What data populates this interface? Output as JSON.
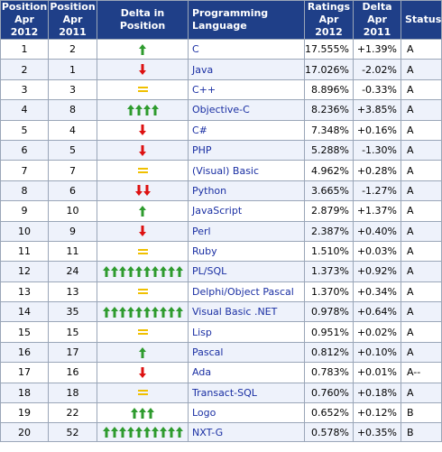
{
  "chart_data": {
    "type": "table",
    "columns": [
      "Position Apr 2012",
      "Position Apr 2011",
      "Delta in Position",
      "Programming Language",
      "Ratings Apr 2012",
      "Delta Apr 2011",
      "Status"
    ],
    "header": {
      "pos2012": [
        "Position",
        "Apr 2012"
      ],
      "pos2011": [
        "Position",
        "Apr 2011"
      ],
      "delta_pos": "Delta in Position",
      "language": "Programming Language",
      "ratings": [
        "Ratings",
        "Apr 2012"
      ],
      "delta_rating": [
        "Delta",
        "Apr 2011"
      ],
      "status": "Status"
    },
    "colors": {
      "up": "#2e9b2e",
      "down": "#dd1111",
      "same": "#f0c000",
      "header_bg": "#1f3f88",
      "link": "#1a2fa3"
    },
    "rows": [
      {
        "pos2012": "1",
        "pos2011": "2",
        "dir": "up",
        "count": 1,
        "language": "C",
        "rating": "17.555%",
        "delta": "+1.39%",
        "status": "A"
      },
      {
        "pos2012": "2",
        "pos2011": "1",
        "dir": "down",
        "count": 1,
        "language": "Java",
        "rating": "17.026%",
        "delta": "-2.02%",
        "status": "A"
      },
      {
        "pos2012": "3",
        "pos2011": "3",
        "dir": "same",
        "count": 1,
        "language": "C++",
        "rating": "8.896%",
        "delta": "-0.33%",
        "status": "A"
      },
      {
        "pos2012": "4",
        "pos2011": "8",
        "dir": "up",
        "count": 4,
        "language": "Objective-C",
        "rating": "8.236%",
        "delta": "+3.85%",
        "status": "A"
      },
      {
        "pos2012": "5",
        "pos2011": "4",
        "dir": "down",
        "count": 1,
        "language": "C#",
        "rating": "7.348%",
        "delta": "+0.16%",
        "status": "A"
      },
      {
        "pos2012": "6",
        "pos2011": "5",
        "dir": "down",
        "count": 1,
        "language": "PHP",
        "rating": "5.288%",
        "delta": "-1.30%",
        "status": "A"
      },
      {
        "pos2012": "7",
        "pos2011": "7",
        "dir": "same",
        "count": 1,
        "language": "(Visual) Basic",
        "rating": "4.962%",
        "delta": "+0.28%",
        "status": "A"
      },
      {
        "pos2012": "8",
        "pos2011": "6",
        "dir": "down",
        "count": 2,
        "language": "Python",
        "rating": "3.665%",
        "delta": "-1.27%",
        "status": "A"
      },
      {
        "pos2012": "9",
        "pos2011": "10",
        "dir": "up",
        "count": 1,
        "language": "JavaScript",
        "rating": "2.879%",
        "delta": "+1.37%",
        "status": "A"
      },
      {
        "pos2012": "10",
        "pos2011": "9",
        "dir": "down",
        "count": 1,
        "language": "Perl",
        "rating": "2.387%",
        "delta": "+0.40%",
        "status": "A"
      },
      {
        "pos2012": "11",
        "pos2011": "11",
        "dir": "same",
        "count": 1,
        "language": "Ruby",
        "rating": "1.510%",
        "delta": "+0.03%",
        "status": "A"
      },
      {
        "pos2012": "12",
        "pos2011": "24",
        "dir": "up",
        "count": 10,
        "language": "PL/SQL",
        "rating": "1.373%",
        "delta": "+0.92%",
        "status": "A"
      },
      {
        "pos2012": "13",
        "pos2011": "13",
        "dir": "same",
        "count": 1,
        "language": "Delphi/Object Pascal",
        "rating": "1.370%",
        "delta": "+0.34%",
        "status": "A"
      },
      {
        "pos2012": "14",
        "pos2011": "35",
        "dir": "up",
        "count": 10,
        "language": "Visual Basic .NET",
        "rating": "0.978%",
        "delta": "+0.64%",
        "status": "A"
      },
      {
        "pos2012": "15",
        "pos2011": "15",
        "dir": "same",
        "count": 1,
        "language": "Lisp",
        "rating": "0.951%",
        "delta": "+0.02%",
        "status": "A"
      },
      {
        "pos2012": "16",
        "pos2011": "17",
        "dir": "up",
        "count": 1,
        "language": "Pascal",
        "rating": "0.812%",
        "delta": "+0.10%",
        "status": "A"
      },
      {
        "pos2012": "17",
        "pos2011": "16",
        "dir": "down",
        "count": 1,
        "language": "Ada",
        "rating": "0.783%",
        "delta": "+0.01%",
        "status": "A--"
      },
      {
        "pos2012": "18",
        "pos2011": "18",
        "dir": "same",
        "count": 1,
        "language": "Transact-SQL",
        "rating": "0.760%",
        "delta": "+0.18%",
        "status": "A"
      },
      {
        "pos2012": "19",
        "pos2011": "22",
        "dir": "up",
        "count": 3,
        "language": "Logo",
        "rating": "0.652%",
        "delta": "+0.12%",
        "status": "B"
      },
      {
        "pos2012": "20",
        "pos2011": "52",
        "dir": "up",
        "count": 10,
        "language": "NXT-G",
        "rating": "0.578%",
        "delta": "+0.35%",
        "status": "B"
      }
    ]
  }
}
